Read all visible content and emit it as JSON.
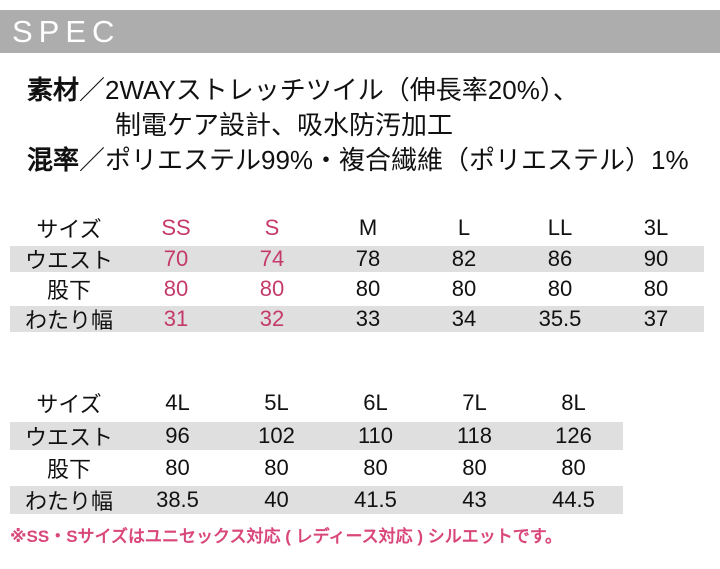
{
  "header": {
    "title": "SPEC"
  },
  "material": {
    "label": "素材",
    "text": "／2WAYストレッチツイル（伸長率20%）、",
    "text2": "制電ケア設計、吸水防汚加工"
  },
  "blend": {
    "label": "混率",
    "text": "／ポリエステル99%・複合繊維（ポリエステル）1%"
  },
  "table1": {
    "header": {
      "label": "サイズ",
      "sizes": [
        "SS",
        "S",
        "M",
        "L",
        "LL",
        "3L"
      ]
    },
    "rows": [
      {
        "label": "ウエスト",
        "values": [
          "70",
          "74",
          "78",
          "82",
          "86",
          "90"
        ]
      },
      {
        "label": "股下",
        "values": [
          "80",
          "80",
          "80",
          "80",
          "80",
          "80"
        ]
      },
      {
        "label": "わたり幅",
        "values": [
          "31",
          "32",
          "33",
          "34",
          "35.5",
          "37"
        ]
      }
    ]
  },
  "table2": {
    "header": {
      "label": "サイズ",
      "sizes": [
        "4L",
        "5L",
        "6L",
        "7L",
        "8L"
      ]
    },
    "rows": [
      {
        "label": "ウエスト",
        "values": [
          "96",
          "102",
          "110",
          "118",
          "126"
        ]
      },
      {
        "label": "股下",
        "values": [
          "80",
          "80",
          "80",
          "80",
          "80"
        ]
      },
      {
        "label": "わたり幅",
        "values": [
          "38.5",
          "40",
          "41.5",
          "43",
          "44.5"
        ]
      }
    ]
  },
  "note": "※SS・Sサイズはユニセックス対応 ( レディース対応 ) シルエットです。",
  "colors": {
    "banner_gray": "#adadad",
    "row_gray": "#dfdfdf",
    "highlight_pink": "#c43a6b",
    "note_pink": "#d9467a",
    "text_black": "#111111"
  }
}
